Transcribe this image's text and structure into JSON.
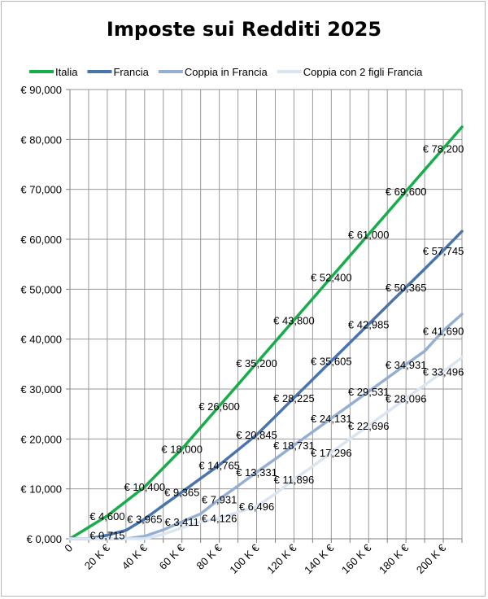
{
  "chart_data": {
    "type": "line",
    "title": "Imposte sui Redditi 2025",
    "xlabel": "",
    "ylabel": "",
    "x": [
      0,
      10,
      20,
      30,
      40,
      50,
      60,
      70,
      80,
      90,
      100,
      110,
      120,
      130,
      140,
      150,
      160,
      170,
      180,
      190,
      200,
      210
    ],
    "x_tick_labels": [
      "0",
      "20 K €",
      "40 K €",
      "60 K €",
      "80 K €",
      "100 K €",
      "120 K €",
      "140 K €",
      "160 K €",
      "180 K €",
      "200 K €"
    ],
    "x_tick_values": [
      0,
      20,
      40,
      60,
      80,
      100,
      120,
      140,
      160,
      180,
      200
    ],
    "xlim": [
      0,
      210
    ],
    "ylim": [
      0,
      90000
    ],
    "y_tick_labels": [
      "€ 0,000",
      "€ 10,000",
      "€ 20,000",
      "€ 30,000",
      "€ 40,000",
      "€ 50,000",
      "€ 60,000",
      "€ 70,000",
      "€ 80,000",
      "€ 90,000"
    ],
    "y_tick_values": [
      0,
      10000,
      20000,
      30000,
      40000,
      50000,
      60000,
      70000,
      80000,
      90000
    ],
    "grid": true,
    "legend_position": "top",
    "series": [
      {
        "name": "Italia",
        "color": "#17ad4b",
        "values": [
          0,
          2300,
          4600,
          7500,
          10400,
          14200,
          18000,
          22300,
          26600,
          30900,
          35200,
          39500,
          43800,
          48100,
          52400,
          56700,
          61000,
          65300,
          69600,
          73900,
          78200,
          82500
        ],
        "labels": [
          {
            "x": 20,
            "y": 4600,
            "text": "€ 4,600"
          },
          {
            "x": 40,
            "y": 10400,
            "text": "€ 10,400"
          },
          {
            "x": 60,
            "y": 18000,
            "text": "€ 18,000"
          },
          {
            "x": 80,
            "y": 26600,
            "text": "€ 26,600"
          },
          {
            "x": 100,
            "y": 35200,
            "text": "€ 35,200"
          },
          {
            "x": 120,
            "y": 43800,
            "text": "€ 43,800"
          },
          {
            "x": 140,
            "y": 52400,
            "text": "€ 52,400"
          },
          {
            "x": 160,
            "y": 61000,
            "text": "€ 61,000"
          },
          {
            "x": 180,
            "y": 69600,
            "text": "€ 69,600"
          },
          {
            "x": 200,
            "y": 78200,
            "text": "€ 78,200"
          }
        ]
      },
      {
        "name": "Francia",
        "color": "#4a74ad",
        "values": [
          0,
          0,
          715,
          1700,
          3965,
          6700,
          9365,
          12100,
          14765,
          17800,
          20845,
          24500,
          28225,
          31900,
          35605,
          39300,
          42985,
          46700,
          50365,
          54050,
          57745,
          61600
        ],
        "labels": [
          {
            "x": 20,
            "y": 715,
            "text": "€ 0,715"
          },
          {
            "x": 40,
            "y": 3965,
            "text": "€ 3,965"
          },
          {
            "x": 60,
            "y": 9365,
            "text": "€ 9,365"
          },
          {
            "x": 80,
            "y": 14765,
            "text": "€ 14,765"
          },
          {
            "x": 100,
            "y": 20845,
            "text": "€ 20,845"
          },
          {
            "x": 120,
            "y": 28225,
            "text": "€ 28,225"
          },
          {
            "x": 140,
            "y": 35605,
            "text": "€ 35,605"
          },
          {
            "x": 160,
            "y": 42985,
            "text": "€ 42,985"
          },
          {
            "x": 180,
            "y": 50365,
            "text": "€ 50,365"
          },
          {
            "x": 200,
            "y": 57745,
            "text": "€ 57,745"
          }
        ]
      },
      {
        "name": "Coppia in Francia",
        "color": "#94afd2",
        "values": [
          0,
          0,
          0,
          0,
          500,
          1800,
          3411,
          5000,
          7931,
          10600,
          13331,
          16000,
          18731,
          21400,
          24131,
          26800,
          29531,
          32200,
          34931,
          37600,
          41690,
          45000
        ],
        "labels": [
          {
            "x": 60,
            "y": 3411,
            "text": "€ 3,411"
          },
          {
            "x": 80,
            "y": 7931,
            "text": "€ 7,931"
          },
          {
            "x": 100,
            "y": 13331,
            "text": "€ 13,331"
          },
          {
            "x": 120,
            "y": 18731,
            "text": "€ 18,731"
          },
          {
            "x": 140,
            "y": 24131,
            "text": "€ 24,131"
          },
          {
            "x": 160,
            "y": 29531,
            "text": "€ 29,531"
          },
          {
            "x": 180,
            "y": 34931,
            "text": "€ 34,931"
          },
          {
            "x": 200,
            "y": 41690,
            "text": "€ 41,690"
          }
        ]
      },
      {
        "name": "Coppia con 2 figli Francia",
        "color": "#dbe5f1",
        "values": [
          0,
          0,
          0,
          0,
          0,
          900,
          2200,
          3400,
          4126,
          5300,
          6496,
          9000,
          11896,
          14500,
          17296,
          20000,
          22696,
          25400,
          28096,
          30800,
          33496,
          36300
        ],
        "labels": [
          {
            "x": 80,
            "y": 4126,
            "text": "€ 4,126"
          },
          {
            "x": 100,
            "y": 6496,
            "text": "€ 6,496"
          },
          {
            "x": 120,
            "y": 11896,
            "text": "€ 11,896"
          },
          {
            "x": 140,
            "y": 17296,
            "text": "€ 17,296"
          },
          {
            "x": 160,
            "y": 22696,
            "text": "€ 22,696"
          },
          {
            "x": 180,
            "y": 28096,
            "text": "€ 28,096"
          },
          {
            "x": 200,
            "y": 33496,
            "text": "€ 33,496"
          }
        ]
      }
    ]
  }
}
